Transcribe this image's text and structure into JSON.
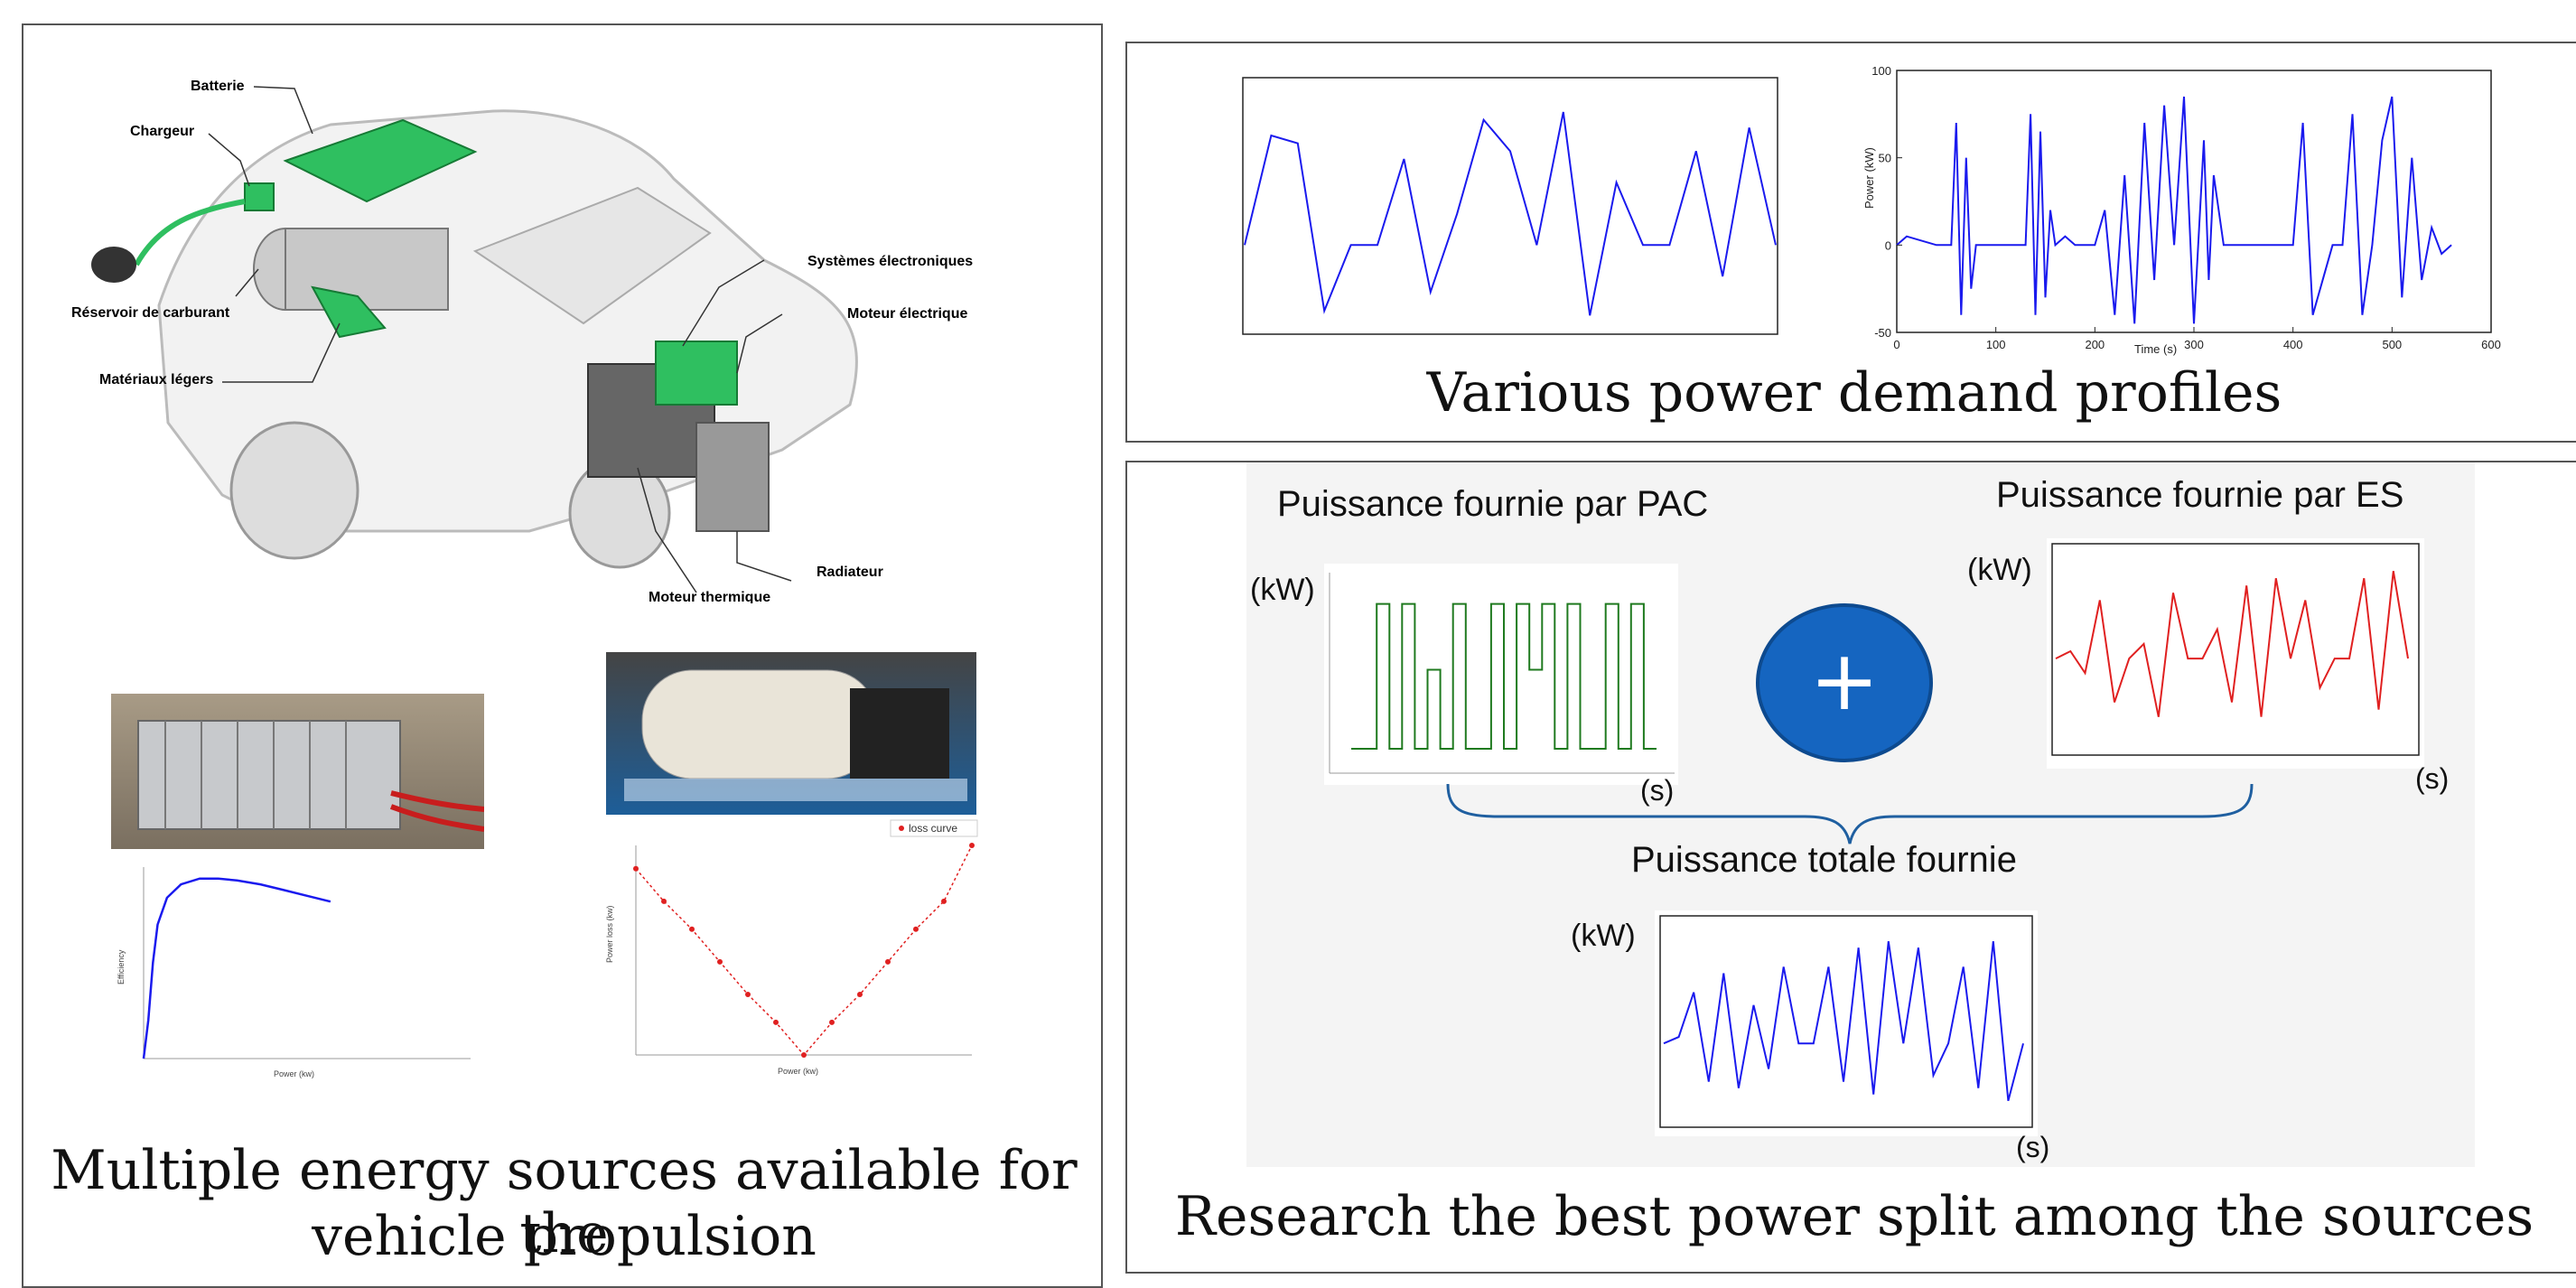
{
  "left_panel": {
    "car_labels": {
      "batterie": "Batterie",
      "chargeur": "Chargeur",
      "systemes": "Systèmes électroniques",
      "moteur_elec": "Moteur électrique",
      "reservoir": "Réservoir de carburant",
      "materiaux": "Matériaux légers",
      "radiateur": "Radiateur",
      "moteur_therm": "Moteur thermique"
    },
    "caption_line1": "Multiple energy sources available for the",
    "caption_line2": "vehicle propulsion",
    "loss_legend": "loss curve",
    "eff_xlabel": "Power (kw)",
    "eff_ylabel": "Efficiency",
    "loss_xlabel": "Power (kw)",
    "loss_ylabel": "Power loss (kw)"
  },
  "top_right": {
    "caption": "Various power demand profiles",
    "plot2": {
      "ylabel": "Power (kW)",
      "xlabel": "Time (s)",
      "yticks": [
        "100",
        "50",
        "0",
        "-50"
      ],
      "xticks": [
        "0",
        "100",
        "200",
        "300",
        "400",
        "500",
        "600"
      ]
    }
  },
  "bottom_right": {
    "pac_title": "Puissance fournie par PAC",
    "es_title": "Puissance fournie par ES",
    "total_title": "Puissance totale fournie",
    "kw": "(kW)",
    "s": "(s)",
    "plus": "+",
    "caption": "Research the best power split among the sources"
  },
  "colors": {
    "blue": "#1a1aee",
    "green": "#1f7a1f",
    "red": "#e02020",
    "accent": "#1565c0"
  },
  "chart_data": [
    {
      "type": "line",
      "series": [
        {
          "values": [
            0,
            70,
            65,
            -42,
            0,
            0,
            55,
            -30,
            20,
            80,
            60,
            0,
            85,
            -45,
            40,
            0,
            0,
            60,
            -20,
            75,
            0
          ]
        }
      ]
    },
    {
      "type": "line",
      "xlabel": "Time (s)",
      "ylabel": "Power (kW)",
      "ylim": [
        -50,
        100
      ],
      "xlim": [
        0,
        600
      ],
      "series": [
        {
          "x": [
            0,
            10,
            40,
            55,
            60,
            65,
            70,
            75,
            80,
            100,
            130,
            135,
            140,
            145,
            150,
            155,
            160,
            170,
            180,
            200,
            210,
            220,
            230,
            240,
            250,
            260,
            270,
            280,
            290,
            300,
            310,
            315,
            320,
            330,
            340,
            350,
            360,
            400,
            410,
            420,
            440,
            450,
            460,
            470,
            480,
            490,
            500,
            510,
            520,
            530,
            540,
            550,
            560
          ],
          "values": [
            0,
            5,
            0,
            0,
            70,
            -40,
            50,
            -25,
            0,
            0,
            0,
            75,
            -40,
            65,
            -30,
            20,
            0,
            5,
            0,
            0,
            20,
            -40,
            40,
            -45,
            70,
            -20,
            80,
            0,
            85,
            -45,
            60,
            -20,
            40,
            0,
            0,
            0,
            0,
            0,
            70,
            -40,
            0,
            0,
            75,
            -40,
            0,
            60,
            85,
            -30,
            50,
            -20,
            10,
            -5,
            0
          ]
        }
      ]
    },
    {
      "type": "line",
      "series": [
        {
          "name": "Puissance fournie par PAC",
          "values": [
            0,
            0,
            55,
            0,
            55,
            0,
            30,
            0,
            55,
            0,
            0,
            55,
            0,
            55,
            30,
            55,
            0,
            55,
            0,
            0,
            55,
            0,
            55,
            0,
            0
          ]
        }
      ]
    },
    {
      "type": "line",
      "series": [
        {
          "name": "Puissance fournie par ES",
          "values": [
            0,
            5,
            -10,
            40,
            -30,
            0,
            10,
            -40,
            45,
            0,
            0,
            20,
            -30,
            50,
            -40,
            55,
            0,
            40,
            -20,
            0,
            0,
            55,
            -35,
            60,
            0
          ]
        }
      ]
    },
    {
      "type": "line",
      "series": [
        {
          "name": "Puissance totale fournie",
          "values": [
            0,
            5,
            40,
            -30,
            55,
            -35,
            30,
            -20,
            60,
            0,
            0,
            60,
            -30,
            75,
            -40,
            80,
            0,
            75,
            -25,
            0,
            60,
            -35,
            80,
            -45,
            0
          ]
        }
      ]
    },
    {
      "type": "line",
      "series": [
        {
          "name": "Efficiency",
          "x": [
            0,
            1,
            2,
            3,
            5,
            8,
            12,
            16,
            20,
            25,
            30,
            35,
            40
          ],
          "values": [
            0.0,
            0.1,
            0.25,
            0.35,
            0.42,
            0.455,
            0.47,
            0.47,
            0.465,
            0.455,
            0.44,
            0.425,
            0.41
          ]
        }
      ]
    },
    {
      "type": "scatter",
      "legend": [
        "loss curve"
      ],
      "series": [
        {
          "name": "loss curve",
          "x": [
            -60,
            -50,
            -40,
            -30,
            -20,
            -10,
            0,
            10,
            20,
            30,
            40,
            50,
            60
          ],
          "values": [
            4.0,
            3.3,
            2.7,
            2.0,
            1.3,
            0.7,
            0.0,
            0.7,
            1.3,
            2.0,
            2.7,
            3.3,
            4.5
          ]
        }
      ]
    }
  ]
}
